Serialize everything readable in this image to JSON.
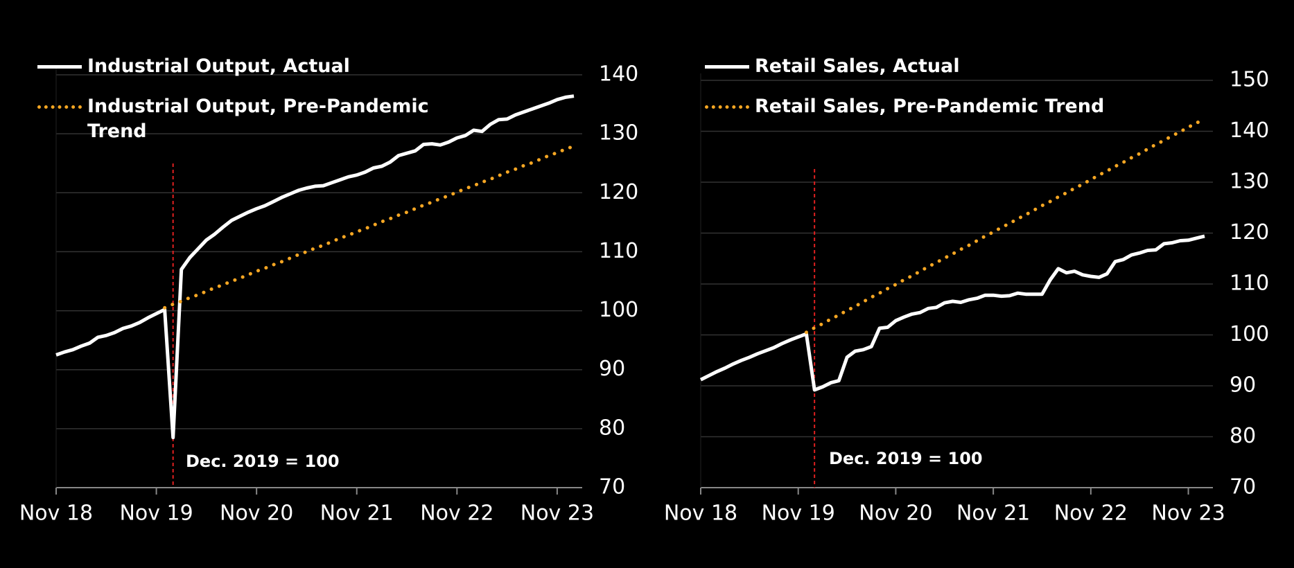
{
  "chart_data": [
    {
      "type": "line",
      "categories": [
        "Nov 18",
        null,
        null,
        null,
        null,
        null,
        null,
        null,
        null,
        null,
        null,
        null,
        "Nov 19",
        null,
        null,
        null,
        null,
        null,
        null,
        null,
        null,
        null,
        null,
        null,
        "Nov 20",
        null,
        null,
        null,
        null,
        null,
        null,
        null,
        null,
        null,
        null,
        null,
        "Nov 21",
        null,
        null,
        null,
        null,
        null,
        null,
        null,
        null,
        null,
        null,
        null,
        "Nov 22",
        null,
        null,
        null,
        null,
        null,
        null,
        null,
        null,
        null,
        null,
        null,
        "Nov 23",
        null,
        null
      ],
      "series": [
        {
          "name": "Industrial Output, Actual",
          "color": "#ffffff",
          "style": "solid",
          "values": [
            92.5,
            93,
            93.4,
            94,
            94.5,
            95.5,
            95.8,
            96.3,
            97,
            97.4,
            98,
            98.8,
            99.5,
            100.2,
            78.5,
            107,
            109,
            110.5,
            112,
            113,
            114.2,
            115.3,
            116,
            116.7,
            117.3,
            117.8,
            118.5,
            119.2,
            119.8,
            120.4,
            120.8,
            121.1,
            121.2,
            121.7,
            122.2,
            122.7,
            123,
            123.5,
            124.2,
            124.5,
            125.2,
            126.3,
            126.7,
            127.1,
            128.2,
            128.3,
            128.1,
            128.6,
            129.3,
            129.7,
            130.6,
            130.4,
            131.6,
            132.4,
            132.5,
            133.2,
            133.7,
            134.2,
            134.7,
            135.2,
            135.8,
            136.2,
            136.4
          ]
        },
        {
          "name": "Industrial Output, Pre-Pandemic Trend",
          "color": "#f5a623",
          "style": "dotted",
          "values": [
            null,
            null,
            null,
            null,
            null,
            null,
            null,
            null,
            null,
            null,
            null,
            null,
            null,
            100.5,
            101.1,
            101.6,
            102.2,
            102.7,
            103.3,
            103.9,
            104.4,
            105.0,
            105.5,
            106.1,
            106.7,
            107.2,
            107.8,
            108.3,
            108.9,
            109.5,
            110.0,
            110.6,
            111.1,
            111.7,
            112.3,
            112.8,
            113.4,
            113.9,
            114.5,
            115.1,
            115.6,
            116.2,
            116.7,
            117.3,
            117.9,
            118.4,
            119.0,
            119.5,
            120.1,
            120.7,
            121.2,
            121.8,
            122.3,
            122.9,
            123.5,
            124.0,
            124.6,
            125.1,
            125.7,
            126.3,
            126.8,
            127.4,
            127.9
          ]
        }
      ],
      "annotation": "Dec. 2019 = 100",
      "ylim": [
        70,
        140
      ],
      "yticks": [
        70,
        80,
        90,
        100,
        110,
        120,
        130,
        140
      ],
      "grid": true
    },
    {
      "type": "line",
      "categories": [
        "Nov 18",
        null,
        null,
        null,
        null,
        null,
        null,
        null,
        null,
        null,
        null,
        null,
        "Nov 19",
        null,
        null,
        null,
        null,
        null,
        null,
        null,
        null,
        null,
        null,
        null,
        "Nov 20",
        null,
        null,
        null,
        null,
        null,
        null,
        null,
        null,
        null,
        null,
        null,
        "Nov 21",
        null,
        null,
        null,
        null,
        null,
        null,
        null,
        null,
        null,
        null,
        null,
        "Nov 22",
        null,
        null,
        null,
        null,
        null,
        null,
        null,
        null,
        null,
        null,
        null,
        "Nov 23",
        null,
        null
      ],
      "series": [
        {
          "name": "Retail Sales, Actual",
          "color": "#ffffff",
          "style": "solid",
          "values": [
            91.2,
            92,
            92.8,
            93.5,
            94.3,
            95,
            95.6,
            96.3,
            96.9,
            97.5,
            98.3,
            99,
            99.6,
            100.2,
            89.2,
            89.8,
            90.6,
            91,
            95.6,
            96.8,
            97.1,
            97.7,
            101.3,
            101.5,
            102.8,
            103.5,
            104.1,
            104.4,
            105.2,
            105.4,
            106.3,
            106.6,
            106.4,
            106.9,
            107.2,
            107.8,
            107.8,
            107.6,
            107.7,
            108.2,
            108,
            108,
            108,
            110.8,
            113,
            112.2,
            112.5,
            111.8,
            111.5,
            111.3,
            112,
            114.4,
            114.8,
            115.7,
            116.1,
            116.6,
            116.7,
            117.9,
            118.1,
            118.5,
            118.6,
            119,
            119.4
          ]
        },
        {
          "name": "Retail Sales, Pre-Pandemic Trend",
          "color": "#f5a623",
          "style": "dotted",
          "values": [
            null,
            null,
            null,
            null,
            null,
            null,
            null,
            null,
            null,
            null,
            null,
            null,
            null,
            100.5,
            101.4,
            102.2,
            103.1,
            103.9,
            104.8,
            105.6,
            106.5,
            107.4,
            108.2,
            109.1,
            109.9,
            110.8,
            111.6,
            112.5,
            113.4,
            114.2,
            115.1,
            115.9,
            116.8,
            117.6,
            118.5,
            119.4,
            120.2,
            121.1,
            121.9,
            122.8,
            123.6,
            124.5,
            125.4,
            126.2,
            127.1,
            127.9,
            128.8,
            129.6,
            130.5,
            131.4,
            132.2,
            133.1,
            133.9,
            134.8,
            135.6,
            136.5,
            137.4,
            138.2,
            139.1,
            139.9,
            140.8,
            141.6,
            142.5
          ]
        }
      ],
      "annotation": "Dec. 2019 = 100",
      "ylim": [
        70,
        150
      ],
      "yticks": [
        70,
        80,
        90,
        100,
        110,
        120,
        130,
        140,
        150
      ],
      "grid": true
    }
  ]
}
